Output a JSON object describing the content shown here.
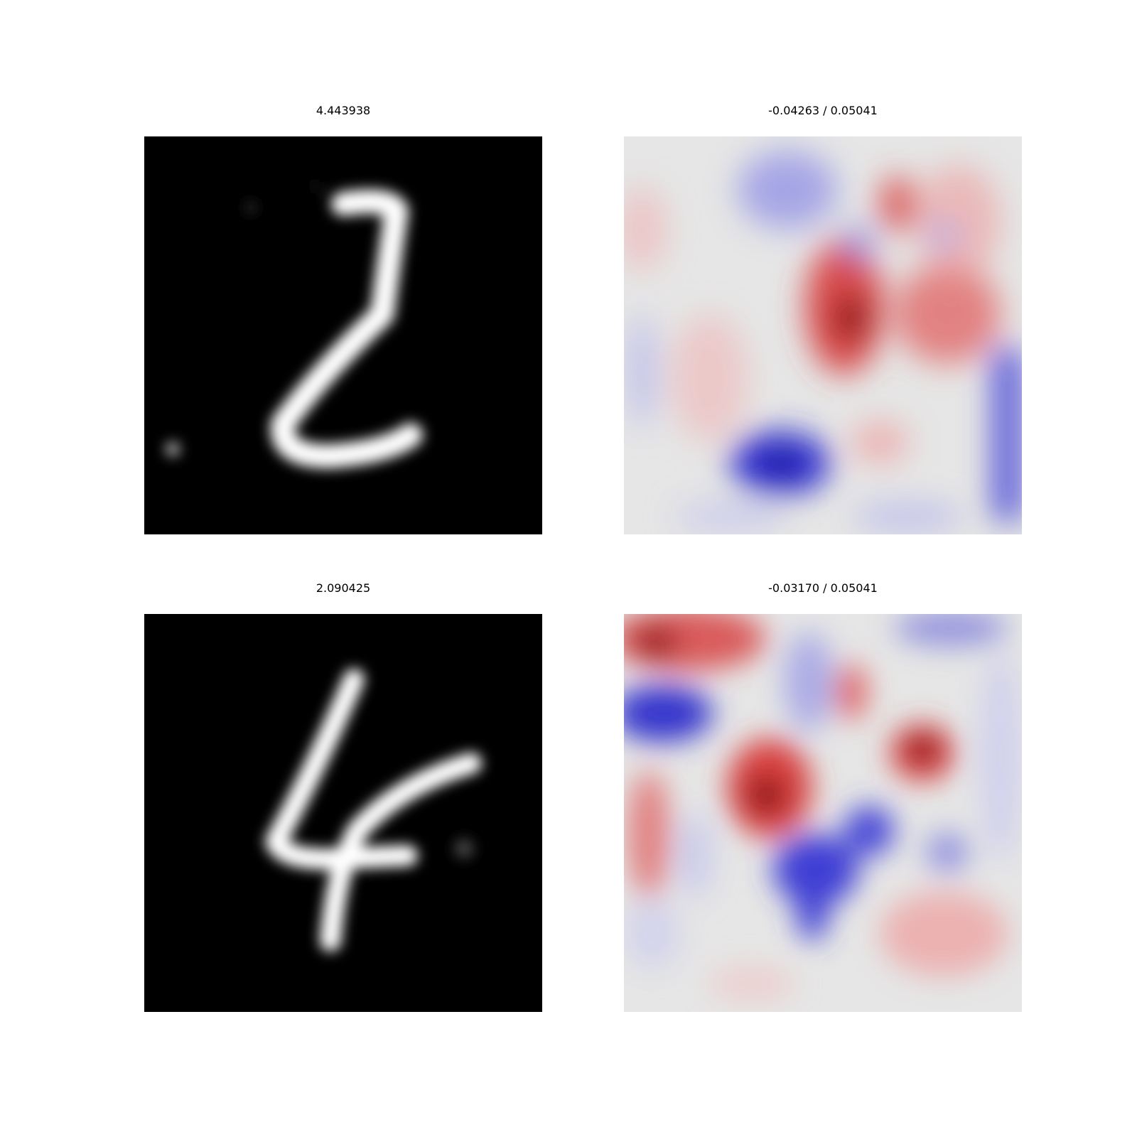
{
  "panels": [
    {
      "title": "4.443938",
      "kind": "grayscale",
      "depicts": "handwritten digit 2",
      "colormap": "gray"
    },
    {
      "title": "-0.04263 / 0.05041",
      "kind": "heatmap",
      "colormap": "bwr"
    },
    {
      "title": "2.090425",
      "kind": "grayscale",
      "depicts": "handwritten digit 4",
      "colormap": "gray"
    },
    {
      "title": "-0.03170 / 0.05041",
      "kind": "heatmap",
      "colormap": "bwr"
    }
  ],
  "colors": {
    "background": "#ffffff",
    "heat_red": "#d62728",
    "heat_blue": "#3b3bd6",
    "heat_neutral": "#e6e6e6"
  }
}
